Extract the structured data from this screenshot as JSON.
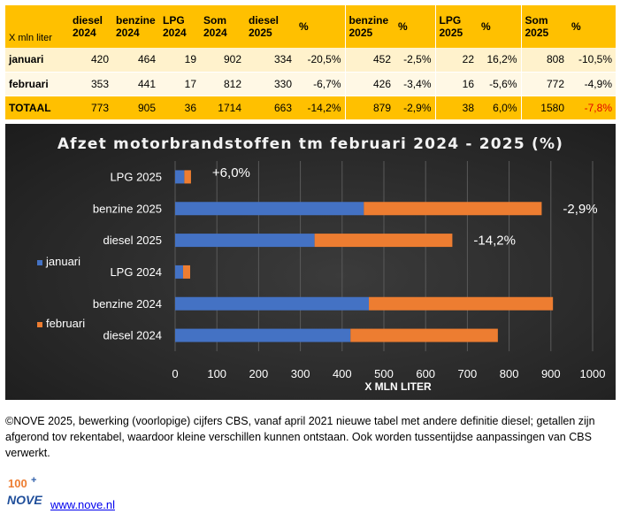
{
  "table": {
    "corner": "X mln liter",
    "headers": [
      [
        "diesel",
        "2024"
      ],
      [
        "benzine",
        "2024"
      ],
      [
        "LPG",
        "2024"
      ],
      [
        "Som",
        "2024"
      ],
      [
        "diesel",
        "2025"
      ],
      [
        "%",
        ""
      ],
      [
        "benzine",
        "2025"
      ],
      [
        "%",
        ""
      ],
      [
        "LPG",
        "2025"
      ],
      [
        "%",
        ""
      ],
      [
        "Som",
        "2025"
      ],
      [
        "%",
        ""
      ]
    ],
    "rows": [
      {
        "label": "januari",
        "cells": [
          "420",
          "464",
          "19",
          "902",
          "334",
          "-20,5%",
          "452",
          "-2,5%",
          "22",
          "16,2%",
          "808",
          "-10,5%"
        ]
      },
      {
        "label": "februari",
        "cells": [
          "353",
          "441",
          "17",
          "812",
          "330",
          "-6,7%",
          "426",
          "-3,4%",
          "16",
          "-5,6%",
          "772",
          "-4,9%"
        ]
      },
      {
        "label": "TOTAAL",
        "cells": [
          "773",
          "905",
          "36",
          "1714",
          "663",
          "-14,2%",
          "879",
          "-2,9%",
          "38",
          "6,0%",
          "1580",
          "-7,8%"
        ]
      }
    ]
  },
  "chart_data": {
    "type": "bar",
    "orientation": "horizontal",
    "stacked": true,
    "title": "Afzet motorbrandstoffen tm februari 2024 - 2025 (%)",
    "xlabel": "X MLN LITER",
    "categories": [
      "LPG 2025",
      "benzine 2025",
      "diesel 2025",
      "LPG 2024",
      "benzine 2024",
      "diesel 2024"
    ],
    "series": [
      {
        "name": "januari",
        "color": "#4472C4",
        "values": [
          22,
          452,
          334,
          19,
          464,
          420
        ]
      },
      {
        "name": "februari",
        "color": "#ED7D31",
        "values": [
          16,
          426,
          330,
          17,
          441,
          353
        ]
      }
    ],
    "xlim": [
      0,
      1000
    ],
    "xticks": [
      "0",
      "100",
      "200",
      "300",
      "400",
      "500",
      "600",
      "700",
      "800",
      "900",
      "1000"
    ],
    "grid": true,
    "legend_position": "left",
    "annotations": [
      {
        "category": "LPG 2025",
        "text": "+6,0%"
      },
      {
        "category": "benzine 2025",
        "text": "-2,9%"
      },
      {
        "category": "diesel 2025",
        "text": "-14,2%"
      }
    ]
  },
  "footer": {
    "note": "©NOVE 2025, bewerking (voorlopige) cijfers CBS, vanaf april 2021 nieuwe tabel met andere definitie diesel; getallen zijn afgerond tov rekentabel, waardoor kleine verschillen kunnen ontstaan. Ook worden tussentijdse aanpassingen van CBS verwerkt.",
    "logo_text": "NOVE",
    "logo_badge": "100",
    "link": "www.nove.nl"
  },
  "colors": {
    "header": "#FFC000",
    "row_light": "#FFF2CC",
    "row_lighter": "#FFF8E5",
    "negative_highlight": "#E00000"
  }
}
